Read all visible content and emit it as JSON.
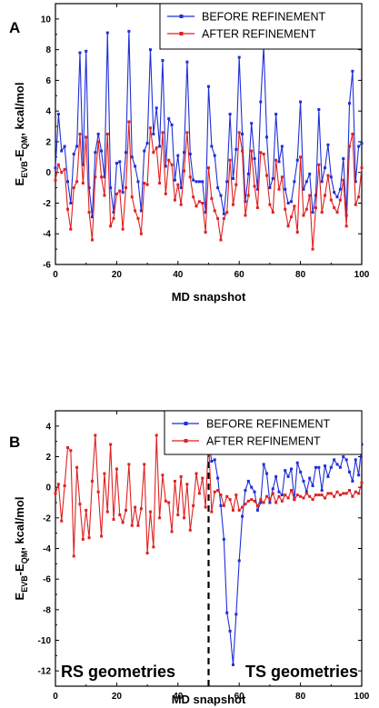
{
  "chart_data": [
    {
      "type": "line",
      "panel_label": "A",
      "xlabel": "MD snapshot",
      "ylabel_main": "E",
      "ylabel_sub1": "EVB",
      "ylabel_mid": "-E",
      "ylabel_sub2": "QM",
      "ylabel_unit": ", kcal/mol",
      "xlim": [
        0,
        100
      ],
      "ylim": [
        -6,
        11
      ],
      "xticks": [
        "0",
        "20",
        "40",
        "60",
        "80",
        "100"
      ],
      "yticks": [
        "-6",
        "-4",
        "-2",
        "0",
        "2",
        "4",
        "6",
        "8",
        "10"
      ],
      "legend_position": "top-right",
      "series": [
        {
          "name": "BEFORE REFINEMENT",
          "color": "#1f2fd6",
          "values": [
            0.3,
            3.8,
            1.4,
            1.7,
            -0.6,
            -2.0,
            1.2,
            1.7,
            7.8,
            0.5,
            7.9,
            -1.0,
            -2.9,
            1.3,
            2.5,
            1.4,
            -0.3,
            9.1,
            -1.0,
            -2.6,
            0.6,
            0.7,
            -1.3,
            1.3,
            9.2,
            1.0,
            0.4,
            -0.6,
            -2.5,
            1.4,
            1.9,
            8.0,
            2.5,
            4.2,
            1.7,
            7.3,
            0.4,
            3.5,
            3.1,
            -0.5,
            1.1,
            -1.0,
            1.3,
            7.2,
            1.2,
            -0.5,
            -0.6,
            -0.6,
            -0.6,
            -2.6,
            5.6,
            1.7,
            1.1,
            -1.0,
            -1.5,
            -2.7,
            -0.6,
            3.8,
            -0.4,
            1.5,
            7.5,
            2.5,
            -1.9,
            -0.1,
            3.2,
            0.9,
            -1.1,
            4.6,
            8.2,
            2.3,
            -1.0,
            -0.4,
            3.8,
            0.7,
            1.7,
            -1.1,
            -2.0,
            -1.9,
            -0.6,
            0.8,
            4.6,
            -1.1,
            -0.6,
            -0.1,
            -2.6,
            -1.5,
            4.1,
            -0.6,
            0.3,
            1.8,
            -0.3,
            -1.3,
            -1.6,
            -1.1,
            0.9,
            -2.8,
            4.5,
            6.6,
            -0.6,
            1.7,
            1.9
          ],
          "x": [
            0,
            1,
            2,
            3,
            4,
            5,
            6,
            7,
            8,
            9,
            10,
            11,
            12,
            13,
            14,
            15,
            16,
            17,
            18,
            19,
            20,
            21,
            22,
            23,
            24,
            25,
            26,
            27,
            28,
            29,
            30,
            31,
            32,
            33,
            34,
            35,
            36,
            37,
            38,
            39,
            40,
            41,
            42,
            43,
            44,
            45,
            46,
            47,
            48,
            49,
            50,
            51,
            52,
            53,
            54,
            55,
            56,
            57,
            58,
            59,
            60,
            61,
            62,
            63,
            64,
            65,
            66,
            67,
            68,
            69,
            70,
            71,
            72,
            73,
            74,
            75,
            76,
            77,
            78,
            79,
            80,
            81,
            82,
            83,
            84,
            85,
            86,
            87,
            88,
            89,
            90,
            91,
            92,
            93,
            94,
            95,
            96,
            97,
            98,
            99,
            100
          ]
        },
        {
          "name": "AFTER REFINEMENT",
          "color": "#e02020",
          "values": [
            -0.5,
            0.5,
            0.0,
            0.2,
            -2.4,
            -3.7,
            -1.0,
            -0.6,
            2.5,
            -0.7,
            2.3,
            -2.6,
            -4.4,
            -0.3,
            2.0,
            -0.3,
            -1.5,
            2.5,
            -3.5,
            -3.0,
            -1.4,
            -1.2,
            -3.7,
            -1.0,
            3.3,
            -1.6,
            -2.5,
            -3.0,
            -4.0,
            -0.7,
            -0.8,
            2.9,
            1.3,
            1.6,
            -0.7,
            2.6,
            -1.4,
            0.8,
            0.5,
            -1.8,
            -0.8,
            -2.1,
            0.1,
            2.6,
            -0.3,
            -1.6,
            -2.2,
            -1.9,
            -2.0,
            -3.9,
            0.3,
            -1.7,
            -2.5,
            -3.0,
            -4.4,
            -3.0,
            -2.6,
            0.8,
            -2.1,
            -0.8,
            2.6,
            1.4,
            -2.8,
            -1.5,
            1.4,
            -0.9,
            -2.3,
            1.3,
            1.2,
            -0.2,
            -2.1,
            -2.6,
            0.8,
            -1.1,
            -0.3,
            -2.4,
            -3.5,
            -2.9,
            -2.2,
            -3.9,
            1.0,
            -2.8,
            -2.4,
            -1.5,
            -5.0,
            -2.3,
            0.5,
            -2.6,
            -1.5,
            -0.2,
            -1.8,
            -2.3,
            -2.6,
            -1.8,
            -0.5,
            -3.5,
            1.7,
            2.5,
            -2.1,
            -1.6,
            0.3
          ],
          "x": [
            0,
            1,
            2,
            3,
            4,
            5,
            6,
            7,
            8,
            9,
            10,
            11,
            12,
            13,
            14,
            15,
            16,
            17,
            18,
            19,
            20,
            21,
            22,
            23,
            24,
            25,
            26,
            27,
            28,
            29,
            30,
            31,
            32,
            33,
            34,
            35,
            36,
            37,
            38,
            39,
            40,
            41,
            42,
            43,
            44,
            45,
            46,
            47,
            48,
            49,
            50,
            51,
            52,
            53,
            54,
            55,
            56,
            57,
            58,
            59,
            60,
            61,
            62,
            63,
            64,
            65,
            66,
            67,
            68,
            69,
            70,
            71,
            72,
            73,
            74,
            75,
            76,
            77,
            78,
            79,
            80,
            81,
            82,
            83,
            84,
            85,
            86,
            87,
            88,
            89,
            90,
            91,
            92,
            93,
            94,
            95,
            96,
            97,
            98,
            99,
            100
          ]
        }
      ]
    },
    {
      "type": "line",
      "panel_label": "B",
      "xlabel": "MD snapshot",
      "ylabel_main": "E",
      "ylabel_sub1": "EVB",
      "ylabel_mid": "-E",
      "ylabel_sub2": "QM",
      "ylabel_unit": ", kcal/mol",
      "xlim": [
        0,
        100
      ],
      "ylim": [
        -13,
        5
      ],
      "xticks": [
        "0",
        "20",
        "40",
        "60",
        "80",
        "100"
      ],
      "yticks": [
        "-12",
        "-10",
        "-8",
        "-6",
        "-4",
        "-2",
        "0",
        "2",
        "4"
      ],
      "legend_position": "top-right",
      "annotation_left": "RS geometries",
      "annotation_right": "TS geometries",
      "divider_x": 50,
      "series": [
        {
          "name": "BEFORE REFINEMENT",
          "color": "#1f2fd6",
          "x": [
            50,
            51,
            52,
            53,
            54,
            55,
            56,
            57,
            58,
            59,
            60,
            61,
            62,
            63,
            64,
            65,
            66,
            67,
            68,
            69,
            70,
            71,
            72,
            73,
            74,
            75,
            76,
            77,
            78,
            79,
            80,
            81,
            82,
            83,
            84,
            85,
            86,
            87,
            88,
            89,
            90,
            91,
            92,
            93,
            94,
            95,
            96,
            97,
            98,
            99,
            100
          ],
          "values": [
            3.0,
            1.7,
            1.8,
            0.6,
            -1.2,
            -3.4,
            -8.2,
            -9.4,
            -11.6,
            -8.3,
            -4.8,
            -1.9,
            -0.2,
            0.4,
            0.0,
            -0.3,
            -1.5,
            -1.0,
            1.5,
            0.9,
            -1.0,
            -0.1,
            0.7,
            -0.3,
            -0.5,
            1.1,
            0.7,
            1.2,
            -0.8,
            1.6,
            1.0,
            0.4,
            -0.3,
            0.6,
            0.1,
            1.3,
            1.3,
            -0.2,
            1.4,
            0.7,
            1.3,
            1.8,
            1.5,
            1.3,
            2.0,
            1.8,
            1.0,
            0.4,
            1.8,
            0.8,
            2.8
          ]
        },
        {
          "name": "AFTER REFINEMENT",
          "color": "#e02020",
          "x": [
            0,
            1,
            2,
            3,
            4,
            5,
            6,
            7,
            8,
            9,
            10,
            11,
            12,
            13,
            14,
            15,
            16,
            17,
            18,
            19,
            20,
            21,
            22,
            23,
            24,
            25,
            26,
            27,
            28,
            29,
            30,
            31,
            32,
            33,
            34,
            35,
            36,
            37,
            38,
            39,
            40,
            41,
            42,
            43,
            44,
            45,
            46,
            47,
            48,
            49,
            50,
            51,
            52,
            53,
            54,
            55,
            56,
            57,
            58,
            59,
            60,
            61,
            62,
            63,
            64,
            65,
            66,
            67,
            68,
            69,
            70,
            71,
            72,
            73,
            74,
            75,
            76,
            77,
            78,
            79,
            80,
            81,
            82,
            83,
            84,
            85,
            86,
            87,
            88,
            89,
            90,
            91,
            92,
            93,
            94,
            95,
            96,
            97,
            98,
            99,
            100
          ],
          "values": [
            -0.4,
            0.2,
            -2.2,
            0.1,
            2.6,
            2.4,
            -4.5,
            1.3,
            -1.1,
            -3.4,
            -1.5,
            -3.3,
            0.4,
            3.4,
            -0.3,
            -3.2,
            0.9,
            -1.6,
            2.8,
            -2.1,
            1.2,
            -1.8,
            -2.3,
            -1.5,
            1.5,
            -2.5,
            -1.3,
            -2.5,
            -1.4,
            1.5,
            -4.3,
            -1.6,
            -3.9,
            3.4,
            -2.0,
            0.8,
            -0.9,
            -1.0,
            -2.9,
            0.4,
            -1.8,
            0.7,
            -2.0,
            0.2,
            -2.8,
            -1.2,
            0.9,
            -0.4,
            0.6,
            -1.3,
            3.0,
            -1.6,
            -0.3,
            -0.2,
            -0.5,
            -1.2,
            -0.6,
            -0.8,
            -1.5,
            -0.5,
            -1.5,
            -1.3,
            -1.1,
            -0.9,
            -0.8,
            -0.9,
            -1.2,
            -0.8,
            -1.0,
            -0.6,
            -0.8,
            -0.4,
            -1.0,
            -0.6,
            -0.9,
            -0.5,
            -0.7,
            -0.2,
            -0.8,
            -0.5,
            -0.6,
            -0.7,
            -0.4,
            -0.6,
            -0.8,
            -0.5,
            -0.5,
            -0.5,
            -0.7,
            -0.4,
            -0.4,
            -0.6,
            -0.3,
            -0.5,
            -0.4,
            -0.4,
            -0.2,
            -0.6,
            -0.3,
            -0.4,
            0.3
          ]
        }
      ]
    }
  ]
}
